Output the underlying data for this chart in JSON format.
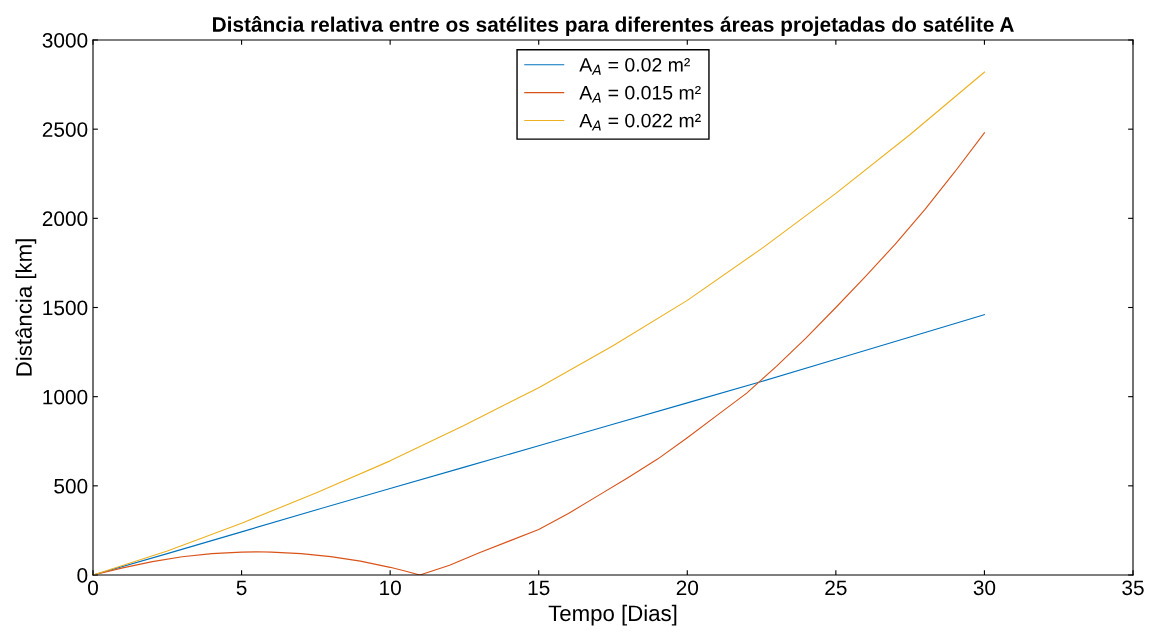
{
  "chart_data": {
    "type": "line",
    "title": "Distância relativa entre os satélites para diferentes áreas projetadas do satélite A",
    "xlabel": "Tempo [Dias]",
    "ylabel": "Distância [km]",
    "xlim": [
      0,
      35
    ],
    "xticks": [
      0,
      5,
      10,
      15,
      20,
      25,
      30,
      35
    ],
    "ylim": [
      0,
      3000
    ],
    "yticks": [
      0,
      500,
      1000,
      1500,
      2000,
      2500,
      3000
    ],
    "grid": false,
    "legend": "top",
    "marker": "none",
    "line_style": "solid",
    "series": [
      {
        "name": "A$_{A}$ = 0.02 m²",
        "color": "#0072bd",
        "x": [
          0,
          2.5,
          5,
          7.5,
          10,
          12.5,
          15,
          17.5,
          20,
          22.5,
          25,
          27.5,
          30
        ],
        "values": [
          0,
          120,
          242,
          365,
          485,
          605,
          725,
          845,
          965,
          1085,
          1210,
          1335,
          1460
        ]
      },
      {
        "name": "A$_{A}$ = 0.015 m²",
        "color": "#d95319",
        "x": [
          0,
          1,
          2,
          3,
          4,
          5,
          5.5,
          6,
          7,
          8,
          9,
          10,
          10.5,
          11,
          12,
          13,
          14,
          15,
          16,
          17,
          18,
          19,
          20,
          21,
          22,
          23,
          24,
          25,
          26,
          27,
          28,
          29,
          30
        ],
        "values": [
          0,
          40,
          75,
          102,
          120,
          128,
          130,
          128,
          120,
          103,
          78,
          43,
          22,
          0,
          55,
          125,
          190,
          255,
          345,
          445,
          545,
          650,
          770,
          895,
          1020,
          1170,
          1330,
          1500,
          1675,
          1855,
          2050,
          2260,
          2480
        ]
      },
      {
        "name": "A$_{A}$ = 0.022 m²",
        "color": "#edb120",
        "x": [
          0,
          2.5,
          5,
          7.5,
          10,
          12.5,
          15,
          17.5,
          20,
          22.5,
          25,
          27.5,
          30
        ],
        "values": [
          0,
          135,
          290,
          460,
          640,
          840,
          1050,
          1285,
          1540,
          1830,
          2140,
          2470,
          2820
        ]
      }
    ]
  }
}
